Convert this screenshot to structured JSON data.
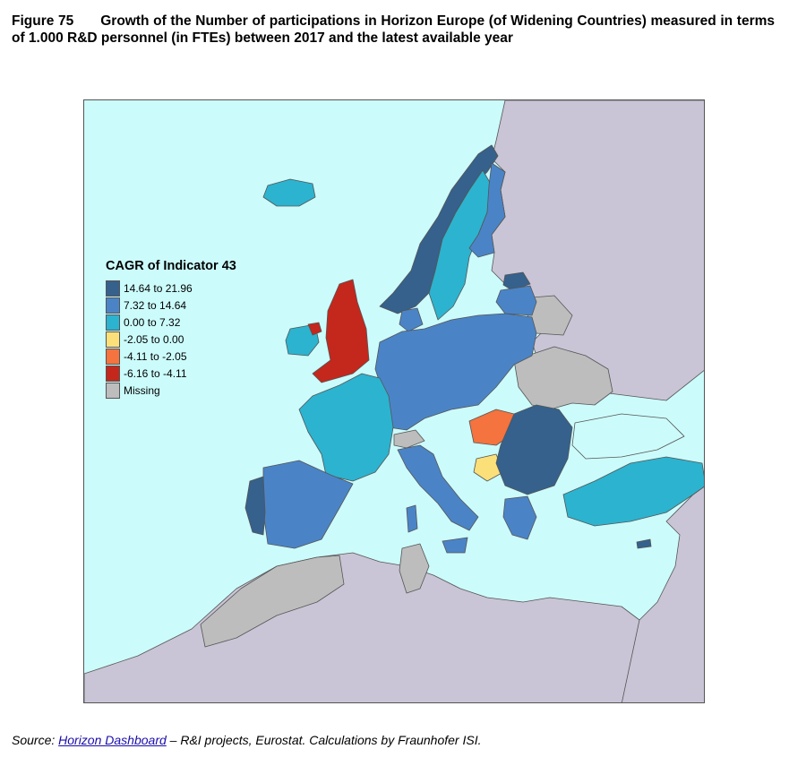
{
  "figure": {
    "label": "Figure 75",
    "title": "Growth of the Number of participations in Horizon Europe (of Widening Countries) measured in terms of 1.000 R&D personnel (in FTEs) between 2017 and the latest available year"
  },
  "legend": {
    "title": "CAGR of Indicator 43",
    "items": [
      {
        "label": "14.64 to 21.96",
        "color": "#35618c"
      },
      {
        "label": "7.32 to 14.64",
        "color": "#4a84c7"
      },
      {
        "label": "0.00 to 7.32",
        "color": "#2cb3cf"
      },
      {
        "label": "-2.05 to 0.00",
        "color": "#fbe07a"
      },
      {
        "label": "-4.11 to -2.05",
        "color": "#f4733e"
      },
      {
        "label": "-6.16 to -4.11",
        "color": "#c4271c"
      },
      {
        "label": "Missing",
        "color": "#bdbdbd"
      }
    ]
  },
  "colors": {
    "sea": "#ccfbfb",
    "non_eu_land": "#c9c5d6",
    "border": "#555555"
  },
  "source": {
    "prefix": "Source:",
    "link_text": "Horizon Dashboard",
    "suffix": "– R&I projects, Eurostat. Calculations by Fraunhofer ISI."
  }
}
